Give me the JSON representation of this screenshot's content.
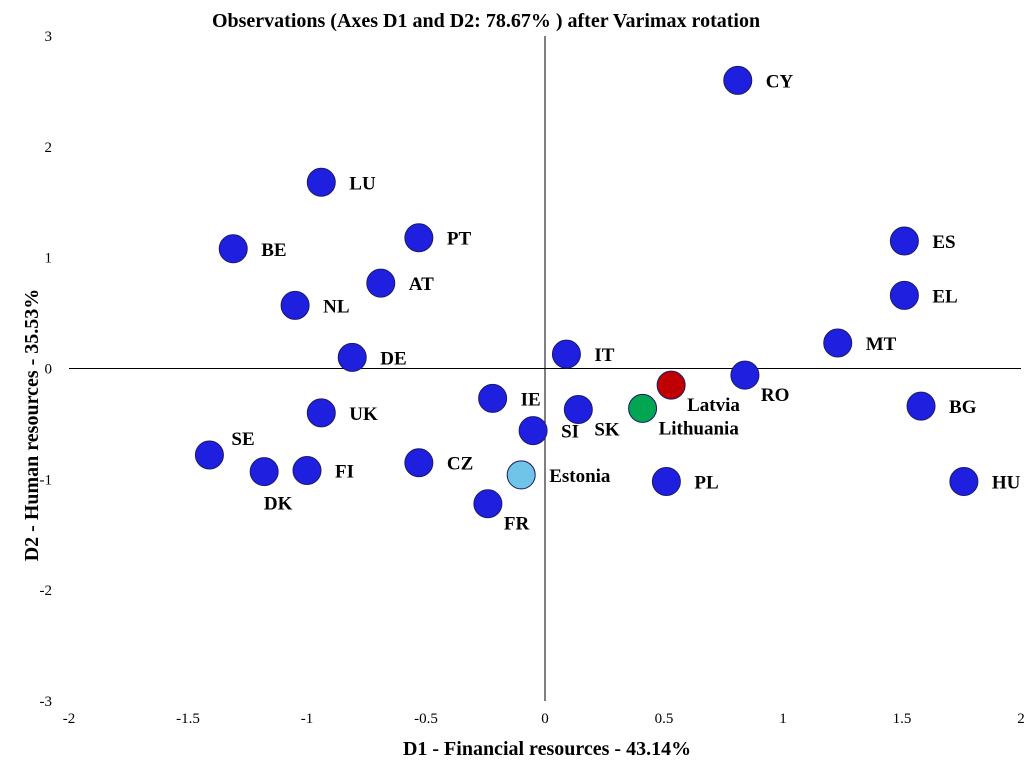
{
  "chart_data": {
    "type": "scatter",
    "title": "Observations (Axes D1 and D2: 78.67% ) after Varimax  rotation",
    "xlabel": "D1 - Financial resources - 43.14%",
    "ylabel": "D2 - Human resources - 35.53%",
    "xlim": [
      -2,
      2
    ],
    "ylim": [
      -3,
      3
    ],
    "x_ticks": [
      "-2",
      "-1.5",
      "-1",
      "-0.5",
      "0",
      "0.5",
      "1",
      "1.5",
      "2"
    ],
    "y_ticks": [
      "-3",
      "-2",
      "-1",
      "0",
      "1",
      "2",
      "3"
    ],
    "grid": false,
    "colors": {
      "default": "#1f1fe0",
      "Latvia": "#c00000",
      "Lithuania": "#00a651",
      "Estonia": "#70c4e8"
    },
    "points": [
      {
        "label": "CY",
        "x": 0.81,
        "y": 2.6,
        "label_pos": "right"
      },
      {
        "label": "LU",
        "x": -0.94,
        "y": 1.68,
        "label_pos": "right"
      },
      {
        "label": "PT",
        "x": -0.53,
        "y": 1.18,
        "label_pos": "right"
      },
      {
        "label": "BE",
        "x": -1.31,
        "y": 1.08,
        "label_pos": "right"
      },
      {
        "label": "ES",
        "x": 1.51,
        "y": 1.15,
        "label_pos": "right"
      },
      {
        "label": "AT",
        "x": -0.69,
        "y": 0.77,
        "label_pos": "right"
      },
      {
        "label": "NL",
        "x": -1.05,
        "y": 0.57,
        "label_pos": "right"
      },
      {
        "label": "EL",
        "x": 1.51,
        "y": 0.66,
        "label_pos": "right"
      },
      {
        "label": "MT",
        "x": 1.23,
        "y": 0.23,
        "label_pos": "right"
      },
      {
        "label": "IT",
        "x": 0.09,
        "y": 0.13,
        "label_pos": "right"
      },
      {
        "label": "DE",
        "x": -0.81,
        "y": 0.1,
        "label_pos": "right"
      },
      {
        "label": "RO",
        "x": 0.84,
        "y": -0.06,
        "label_pos": "right-below"
      },
      {
        "label": "Latvia",
        "x": 0.53,
        "y": -0.15,
        "label_pos": "right-below"
      },
      {
        "label": "IE",
        "x": -0.22,
        "y": -0.27,
        "label_pos": "right"
      },
      {
        "label": "BG",
        "x": 1.58,
        "y": -0.34,
        "label_pos": "right"
      },
      {
        "label": "Lithuania",
        "x": 0.41,
        "y": -0.36,
        "label_pos": "right-below"
      },
      {
        "label": "SK",
        "x": 0.14,
        "y": -0.37,
        "label_pos": "right-below"
      },
      {
        "label": "UK",
        "x": -0.94,
        "y": -0.4,
        "label_pos": "right"
      },
      {
        "label": "SI",
        "x": -0.05,
        "y": -0.56,
        "label_pos": "right"
      },
      {
        "label": "SE",
        "x": -1.41,
        "y": -0.78,
        "label_pos": "right-above"
      },
      {
        "label": "CZ",
        "x": -0.53,
        "y": -0.85,
        "label_pos": "right"
      },
      {
        "label": "DK",
        "x": -1.18,
        "y": -0.93,
        "label_pos": "below"
      },
      {
        "label": "FI",
        "x": -1.0,
        "y": -0.92,
        "label_pos": "right"
      },
      {
        "label": "Estonia",
        "x": -0.1,
        "y": -0.96,
        "label_pos": "right"
      },
      {
        "label": "PL",
        "x": 0.51,
        "y": -1.02,
        "label_pos": "right"
      },
      {
        "label": "HU",
        "x": 1.76,
        "y": -1.02,
        "label_pos": "right"
      },
      {
        "label": "FR",
        "x": -0.24,
        "y": -1.22,
        "label_pos": "right-below"
      }
    ]
  }
}
